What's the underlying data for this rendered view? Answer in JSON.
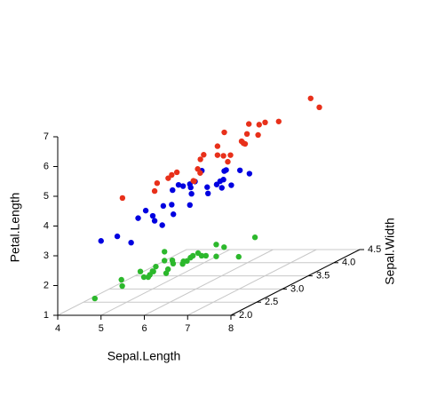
{
  "chart_data": {
    "type": "scatter3d",
    "xlabel": "Sepal.Length",
    "ylabel": "Sepal.Width",
    "zlabel": "Petal.Length",
    "xlim": [
      4,
      8
    ],
    "xticks": [
      4,
      5,
      6,
      7,
      8
    ],
    "ylim": [
      2,
      4.5
    ],
    "yticks": [
      {
        "value": 2,
        "label": "2.0"
      },
      {
        "value": 2.5,
        "label": "2.5"
      },
      {
        "value": 3,
        "label": "3.0"
      },
      {
        "value": 3.5,
        "label": "3.5"
      },
      {
        "value": 4,
        "label": "4.0"
      },
      {
        "value": 4.5,
        "label": "4.5"
      }
    ],
    "zlim": [
      1,
      7
    ],
    "zticks": [
      1,
      2,
      3,
      4,
      5,
      6,
      7
    ],
    "grid": true,
    "series": [
      {
        "color": "#2cb82c",
        "x": [
          5.1,
          4.9,
          4.7,
          4.6,
          5.0,
          5.4,
          4.6,
          5.0,
          4.4,
          4.9,
          5.4,
          4.8,
          4.8,
          4.3,
          5.8,
          5.7,
          5.4,
          5.7,
          5.1,
          5.4,
          5.1,
          4.6,
          5.1,
          4.8,
          5.0,
          5.2,
          4.5,
          5.3,
          5.0
        ],
        "y": [
          3.5,
          3.0,
          3.2,
          3.1,
          3.6,
          3.9,
          3.4,
          3.4,
          2.9,
          3.1,
          3.7,
          3.4,
          3.0,
          3.0,
          4.0,
          4.4,
          3.9,
          3.8,
          3.8,
          3.4,
          3.7,
          3.6,
          3.3,
          3.4,
          3.0,
          3.5,
          2.3,
          3.7,
          3.3
        ],
        "z": [
          1.4,
          1.4,
          1.3,
          1.5,
          1.4,
          1.7,
          1.4,
          1.5,
          1.4,
          1.5,
          1.5,
          1.6,
          1.4,
          1.1,
          1.2,
          1.5,
          1.3,
          1.7,
          1.5,
          1.7,
          1.5,
          1.0,
          1.7,
          1.9,
          1.6,
          1.5,
          1.3,
          1.5,
          1.4
        ]
      },
      {
        "color": "#0000e0",
        "x": [
          7.0,
          6.4,
          6.9,
          5.5,
          6.5,
          5.7,
          6.3,
          4.9,
          6.6,
          5.2,
          5.0,
          5.9,
          6.0,
          6.1,
          5.6,
          6.7,
          5.6,
          5.8,
          6.2,
          5.6,
          5.9,
          6.1,
          6.3,
          6.1,
          6.4,
          6.6,
          6.8,
          6.7,
          6.0,
          5.7,
          5.1
        ],
        "y": [
          3.2,
          3.2,
          3.1,
          2.3,
          2.8,
          2.8,
          3.3,
          2.4,
          2.9,
          2.7,
          2.0,
          3.0,
          2.2,
          2.9,
          2.9,
          3.1,
          3.0,
          2.7,
          2.2,
          2.5,
          3.2,
          2.8,
          2.5,
          2.8,
          2.9,
          3.0,
          2.8,
          3.0,
          2.9,
          2.6,
          2.5
        ],
        "z": [
          4.7,
          4.5,
          4.9,
          4.0,
          4.6,
          4.5,
          4.7,
          3.3,
          4.6,
          3.9,
          3.5,
          4.2,
          4.0,
          4.7,
          3.6,
          4.4,
          4.5,
          4.1,
          4.5,
          3.9,
          4.8,
          4.0,
          4.9,
          4.7,
          4.3,
          4.4,
          4.8,
          5.0,
          4.5,
          3.5,
          3.0
        ]
      },
      {
        "color": "#e8301a",
        "x": [
          6.3,
          5.8,
          7.1,
          6.3,
          6.5,
          7.6,
          4.9,
          7.3,
          6.7,
          7.2,
          6.5,
          6.4,
          6.8,
          5.7,
          5.8,
          6.4,
          6.5,
          7.7,
          7.7,
          6.0,
          6.9,
          5.6,
          7.7,
          6.3,
          6.7,
          7.2,
          7.9,
          6.2,
          6.1
        ],
        "y": [
          3.3,
          2.7,
          3.0,
          2.9,
          3.0,
          3.0,
          2.5,
          2.9,
          2.5,
          3.6,
          3.2,
          2.7,
          3.0,
          2.5,
          2.8,
          3.2,
          3.0,
          3.8,
          2.6,
          2.2,
          3.2,
          2.8,
          2.8,
          2.7,
          3.3,
          3.2,
          3.8,
          2.8,
          3.0
        ],
        "z": [
          6.0,
          5.1,
          5.9,
          5.6,
          5.8,
          6.6,
          4.5,
          6.3,
          5.8,
          6.1,
          5.1,
          5.3,
          5.5,
          5.0,
          5.1,
          5.3,
          5.5,
          6.7,
          6.9,
          5.0,
          5.7,
          4.9,
          6.7,
          4.9,
          5.7,
          6.0,
          6.4,
          4.8,
          4.9
        ]
      }
    ]
  }
}
